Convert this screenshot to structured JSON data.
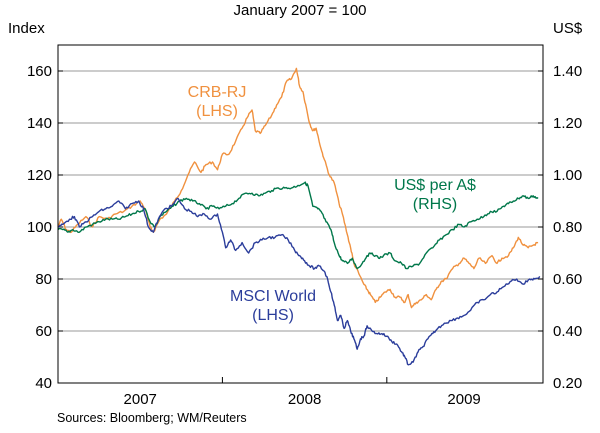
{
  "chart_data": {
    "type": "line",
    "subtitle": "January 2007 = 100",
    "left_axis": {
      "title": "Index",
      "range": [
        40,
        170
      ],
      "ticks": [
        "160",
        "140",
        "120",
        "100",
        "80",
        "60",
        "40"
      ]
    },
    "right_axis": {
      "title": "US$",
      "range": [
        0.2,
        1.5
      ],
      "ticks": [
        "1.40",
        "1.20",
        "1.00",
        "0.80",
        "0.60",
        "0.40",
        "0.20"
      ]
    },
    "x_axis": {
      "range": [
        2007.0,
        2009.95
      ],
      "years": [
        "2007",
        "2008",
        "2009"
      ]
    },
    "series": [
      {
        "name": "CRB-RJ",
        "axis": "left",
        "color": "#f0913f",
        "label_line1": "CRB-RJ",
        "label_line2": "(LHS)",
        "points": [
          [
            2007.0,
            100
          ],
          [
            2007.02,
            103
          ],
          [
            2007.05,
            99
          ],
          [
            2007.08,
            98
          ],
          [
            2007.12,
            101
          ],
          [
            2007.17,
            104
          ],
          [
            2007.21,
            100
          ],
          [
            2007.25,
            104
          ],
          [
            2007.3,
            103
          ],
          [
            2007.35,
            105
          ],
          [
            2007.4,
            106
          ],
          [
            2007.45,
            108
          ],
          [
            2007.5,
            110
          ],
          [
            2007.53,
            107
          ],
          [
            2007.56,
            100
          ],
          [
            2007.58,
            98
          ],
          [
            2007.62,
            103
          ],
          [
            2007.66,
            105
          ],
          [
            2007.71,
            110
          ],
          [
            2007.75,
            114
          ],
          [
            2007.79,
            120
          ],
          [
            2007.83,
            125
          ],
          [
            2007.87,
            121
          ],
          [
            2007.9,
            124
          ],
          [
            2007.94,
            125
          ],
          [
            2007.97,
            122
          ],
          [
            2008.0,
            128
          ],
          [
            2008.04,
            128
          ],
          [
            2008.08,
            133
          ],
          [
            2008.12,
            138
          ],
          [
            2008.15,
            142
          ],
          [
            2008.18,
            145
          ],
          [
            2008.2,
            137
          ],
          [
            2008.23,
            136
          ],
          [
            2008.26,
            139
          ],
          [
            2008.3,
            143
          ],
          [
            2008.33,
            147
          ],
          [
            2008.36,
            150
          ],
          [
            2008.39,
            156
          ],
          [
            2008.42,
            157
          ],
          [
            2008.45,
            161
          ],
          [
            2008.47,
            154
          ],
          [
            2008.49,
            152
          ],
          [
            2008.51,
            146
          ],
          [
            2008.53,
            140
          ],
          [
            2008.55,
            137
          ],
          [
            2008.57,
            138
          ],
          [
            2008.6,
            130
          ],
          [
            2008.62,
            126
          ],
          [
            2008.65,
            120
          ],
          [
            2008.68,
            117
          ],
          [
            2008.71,
            109
          ],
          [
            2008.73,
            105
          ],
          [
            2008.76,
            97
          ],
          [
            2008.78,
            92
          ],
          [
            2008.8,
            86
          ],
          [
            2008.83,
            82
          ],
          [
            2008.86,
            78
          ],
          [
            2008.88,
            76
          ],
          [
            2008.9,
            74
          ],
          [
            2008.93,
            71
          ],
          [
            2008.96,
            73
          ],
          [
            2008.99,
            75
          ],
          [
            2009.02,
            76
          ],
          [
            2009.05,
            73
          ],
          [
            2009.08,
            73
          ],
          [
            2009.11,
            71
          ],
          [
            2009.13,
            74
          ],
          [
            2009.15,
            69
          ],
          [
            2009.18,
            71
          ],
          [
            2009.21,
            72
          ],
          [
            2009.24,
            74
          ],
          [
            2009.27,
            72
          ],
          [
            2009.3,
            76
          ],
          [
            2009.33,
            79
          ],
          [
            2009.36,
            80
          ],
          [
            2009.4,
            84
          ],
          [
            2009.44,
            86
          ],
          [
            2009.47,
            88
          ],
          [
            2009.5,
            86
          ],
          [
            2009.53,
            84
          ],
          [
            2009.56,
            88
          ],
          [
            2009.6,
            86
          ],
          [
            2009.64,
            89
          ],
          [
            2009.67,
            86
          ],
          [
            2009.7,
            88
          ],
          [
            2009.74,
            89
          ],
          [
            2009.77,
            92
          ],
          [
            2009.8,
            96
          ],
          [
            2009.83,
            93
          ],
          [
            2009.86,
            92
          ],
          [
            2009.89,
            93
          ],
          [
            2009.92,
            94
          ]
        ]
      },
      {
        "name": "US$ per A$",
        "axis": "right",
        "color": "#00774a",
        "label_line1": "US$ per A$",
        "label_line2": "(RHS)",
        "points": [
          [
            2007.0,
            0.79
          ],
          [
            2007.03,
            0.79
          ],
          [
            2007.06,
            0.78
          ],
          [
            2007.09,
            0.79
          ],
          [
            2007.13,
            0.78
          ],
          [
            2007.17,
            0.8
          ],
          [
            2007.21,
            0.81
          ],
          [
            2007.25,
            0.82
          ],
          [
            2007.29,
            0.83
          ],
          [
            2007.33,
            0.83
          ],
          [
            2007.37,
            0.83
          ],
          [
            2007.41,
            0.84
          ],
          [
            2007.45,
            0.85
          ],
          [
            2007.49,
            0.86
          ],
          [
            2007.53,
            0.87
          ],
          [
            2007.56,
            0.82
          ],
          [
            2007.59,
            0.8
          ],
          [
            2007.62,
            0.84
          ],
          [
            2007.66,
            0.86
          ],
          [
            2007.7,
            0.88
          ],
          [
            2007.74,
            0.9
          ],
          [
            2007.78,
            0.91
          ],
          [
            2007.82,
            0.9
          ],
          [
            2007.86,
            0.89
          ],
          [
            2007.9,
            0.87
          ],
          [
            2007.94,
            0.88
          ],
          [
            2007.98,
            0.87
          ],
          [
            2008.02,
            0.88
          ],
          [
            2008.06,
            0.89
          ],
          [
            2008.1,
            0.91
          ],
          [
            2008.14,
            0.93
          ],
          [
            2008.18,
            0.93
          ],
          [
            2008.22,
            0.92
          ],
          [
            2008.26,
            0.93
          ],
          [
            2008.3,
            0.94
          ],
          [
            2008.34,
            0.95
          ],
          [
            2008.38,
            0.95
          ],
          [
            2008.42,
            0.95
          ],
          [
            2008.46,
            0.96
          ],
          [
            2008.5,
            0.97
          ],
          [
            2008.52,
            0.96
          ],
          [
            2008.55,
            0.88
          ],
          [
            2008.58,
            0.87
          ],
          [
            2008.6,
            0.86
          ],
          [
            2008.63,
            0.82
          ],
          [
            2008.66,
            0.79
          ],
          [
            2008.68,
            0.74
          ],
          [
            2008.71,
            0.69
          ],
          [
            2008.73,
            0.67
          ],
          [
            2008.76,
            0.66
          ],
          [
            2008.79,
            0.68
          ],
          [
            2008.82,
            0.64
          ],
          [
            2008.85,
            0.66
          ],
          [
            2008.88,
            0.69
          ],
          [
            2008.91,
            0.7
          ],
          [
            2008.95,
            0.68
          ],
          [
            2008.98,
            0.69
          ],
          [
            2009.02,
            0.7
          ],
          [
            2009.05,
            0.67
          ],
          [
            2009.09,
            0.66
          ],
          [
            2009.12,
            0.64
          ],
          [
            2009.16,
            0.65
          ],
          [
            2009.2,
            0.66
          ],
          [
            2009.24,
            0.7
          ],
          [
            2009.28,
            0.72
          ],
          [
            2009.32,
            0.75
          ],
          [
            2009.36,
            0.77
          ],
          [
            2009.4,
            0.79
          ],
          [
            2009.44,
            0.81
          ],
          [
            2009.47,
            0.8
          ],
          [
            2009.51,
            0.82
          ],
          [
            2009.55,
            0.83
          ],
          [
            2009.59,
            0.84
          ],
          [
            2009.63,
            0.86
          ],
          [
            2009.67,
            0.86
          ],
          [
            2009.71,
            0.88
          ],
          [
            2009.74,
            0.89
          ],
          [
            2009.77,
            0.9
          ],
          [
            2009.8,
            0.91
          ],
          [
            2009.83,
            0.92
          ],
          [
            2009.86,
            0.91
          ],
          [
            2009.89,
            0.92
          ],
          [
            2009.92,
            0.91
          ]
        ]
      },
      {
        "name": "MSCI World",
        "axis": "left",
        "color": "#2b3d9b",
        "label_line1": "MSCI World",
        "label_line2": "(LHS)",
        "points": [
          [
            2007.0,
            100
          ],
          [
            2007.03,
            101
          ],
          [
            2007.07,
            103
          ],
          [
            2007.1,
            104
          ],
          [
            2007.13,
            100
          ],
          [
            2007.17,
            102
          ],
          [
            2007.21,
            104
          ],
          [
            2007.25,
            106
          ],
          [
            2007.29,
            107
          ],
          [
            2007.33,
            108
          ],
          [
            2007.37,
            110
          ],
          [
            2007.41,
            107
          ],
          [
            2007.45,
            109
          ],
          [
            2007.49,
            110
          ],
          [
            2007.52,
            107
          ],
          [
            2007.55,
            100
          ],
          [
            2007.58,
            98
          ],
          [
            2007.61,
            103
          ],
          [
            2007.65,
            107
          ],
          [
            2007.69,
            108
          ],
          [
            2007.73,
            111
          ],
          [
            2007.77,
            107
          ],
          [
            2007.81,
            106
          ],
          [
            2007.85,
            104
          ],
          [
            2007.89,
            105
          ],
          [
            2007.93,
            103
          ],
          [
            2007.97,
            105
          ],
          [
            2008.0,
            98
          ],
          [
            2008.02,
            92
          ],
          [
            2008.05,
            95
          ],
          [
            2008.08,
            91
          ],
          [
            2008.12,
            94
          ],
          [
            2008.16,
            90
          ],
          [
            2008.2,
            94
          ],
          [
            2008.24,
            95
          ],
          [
            2008.28,
            96
          ],
          [
            2008.32,
            96
          ],
          [
            2008.36,
            97
          ],
          [
            2008.4,
            95
          ],
          [
            2008.44,
            91
          ],
          [
            2008.47,
            89
          ],
          [
            2008.5,
            87
          ],
          [
            2008.53,
            85
          ],
          [
            2008.56,
            84
          ],
          [
            2008.59,
            85
          ],
          [
            2008.62,
            83
          ],
          [
            2008.64,
            80
          ],
          [
            2008.66,
            75
          ],
          [
            2008.68,
            70
          ],
          [
            2008.7,
            64
          ],
          [
            2008.72,
            66
          ],
          [
            2008.74,
            61
          ],
          [
            2008.76,
            64
          ],
          [
            2008.78,
            60
          ],
          [
            2008.8,
            57
          ],
          [
            2008.82,
            53
          ],
          [
            2008.84,
            57
          ],
          [
            2008.86,
            58
          ],
          [
            2008.88,
            62
          ],
          [
            2008.91,
            60
          ],
          [
            2008.94,
            59
          ],
          [
            2008.97,
            59
          ],
          [
            2009.0,
            58
          ],
          [
            2009.03,
            56
          ],
          [
            2009.06,
            55
          ],
          [
            2009.09,
            52
          ],
          [
            2009.11,
            50
          ],
          [
            2009.13,
            47
          ],
          [
            2009.16,
            48
          ],
          [
            2009.19,
            52
          ],
          [
            2009.22,
            54
          ],
          [
            2009.25,
            57
          ],
          [
            2009.28,
            59
          ],
          [
            2009.31,
            61
          ],
          [
            2009.35,
            63
          ],
          [
            2009.39,
            64
          ],
          [
            2009.43,
            65
          ],
          [
            2009.47,
            66
          ],
          [
            2009.51,
            68
          ],
          [
            2009.55,
            71
          ],
          [
            2009.59,
            72
          ],
          [
            2009.63,
            74
          ],
          [
            2009.67,
            75
          ],
          [
            2009.71,
            77
          ],
          [
            2009.75,
            79
          ],
          [
            2009.79,
            80
          ],
          [
            2009.83,
            78
          ],
          [
            2009.87,
            80
          ],
          [
            2009.9,
            80
          ],
          [
            2009.93,
            81
          ]
        ]
      }
    ],
    "source": "Sources: Bloomberg; WM/Reuters"
  }
}
